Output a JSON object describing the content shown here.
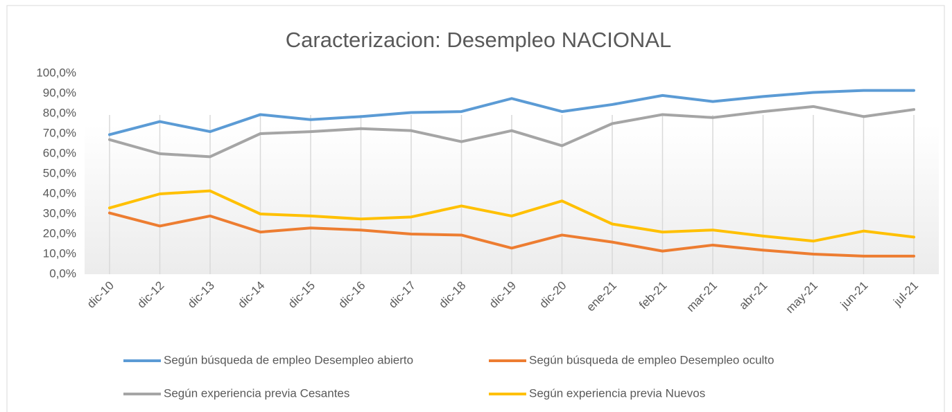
{
  "chart_data": {
    "type": "line",
    "title": "Caracterizacion: Desempleo NACIONAL",
    "categories": [
      "dic-10",
      "dic-12",
      "dic-13",
      "dic-14",
      "dic-15",
      "dic-16",
      "dic-17",
      "dic-18",
      "dic-19",
      "dic-20",
      "ene-21",
      "feb-21",
      "mar-21",
      "abr-21",
      "may-21",
      "jun-21",
      "jul-21"
    ],
    "series": [
      {
        "name": "Según búsqueda de empleo Desempleo abierto",
        "color": "#5b9bd5",
        "values": [
          69.5,
          76,
          71,
          79.5,
          77,
          78.5,
          80.5,
          81,
          87.5,
          81,
          84.5,
          89,
          86,
          88.5,
          90.5,
          91.5,
          91.5
        ]
      },
      {
        "name": "Según búsqueda de empleo Desempleo oculto",
        "color": "#ed7d31",
        "values": [
          30.5,
          24,
          29,
          21,
          23,
          22,
          20,
          19.5,
          13,
          19.5,
          16,
          11.5,
          14.5,
          12,
          10,
          9,
          9
        ]
      },
      {
        "name": "Según experiencia previa Cesantes",
        "color": "#a5a5a5",
        "values": [
          67,
          60,
          58.5,
          70,
          71,
          72.5,
          71.5,
          66,
          71.5,
          64,
          75,
          79.5,
          78,
          81,
          83.5,
          78.5,
          82
        ]
      },
      {
        "name": "Según experiencia previa Nuevos",
        "color": "#ffc000",
        "values": [
          33,
          40,
          41.5,
          30,
          29,
          27.5,
          28.5,
          34,
          29,
          36.5,
          25,
          21,
          22,
          19,
          16.5,
          21.5,
          18.5
        ]
      }
    ],
    "ylim": [
      0,
      100
    ],
    "yticks": [
      {
        "value": 0,
        "label": "0,0%"
      },
      {
        "value": 10,
        "label": "10,0%"
      },
      {
        "value": 20,
        "label": "20,0%"
      },
      {
        "value": 30,
        "label": "30,0%"
      },
      {
        "value": 40,
        "label": "40,0%"
      },
      {
        "value": 50,
        "label": "50,0%"
      },
      {
        "value": 60,
        "label": "60,0%"
      },
      {
        "value": 70,
        "label": "70,0%"
      },
      {
        "value": 80,
        "label": "80,0%"
      },
      {
        "value": 90,
        "label": "90,0%"
      },
      {
        "value": 100,
        "label": "100,0%"
      }
    ],
    "grid": "x",
    "legend": "bottom"
  }
}
